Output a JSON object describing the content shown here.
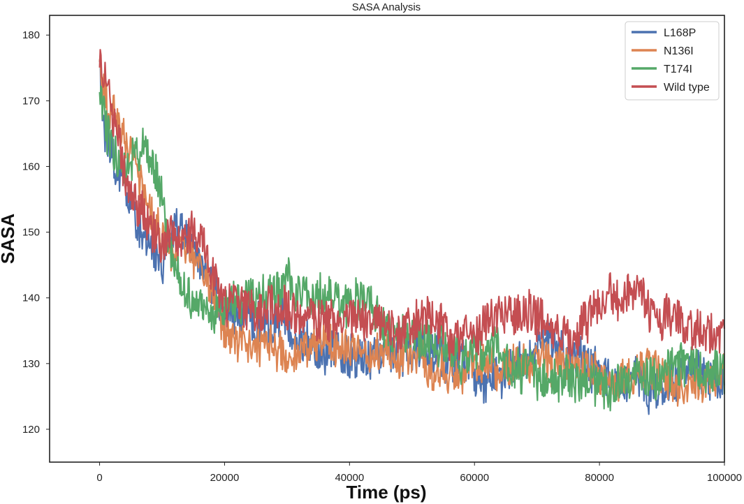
{
  "chart_data": {
    "type": "line",
    "title": "SASA Analysis",
    "xlabel": "Time (ps)",
    "ylabel": "SASA",
    "xlim": [
      -8000,
      100000
    ],
    "ylim": [
      115,
      183
    ],
    "xticks": [
      0,
      20000,
      40000,
      60000,
      80000,
      100000
    ],
    "yticks": [
      120,
      130,
      140,
      150,
      160,
      170,
      180
    ],
    "grid": false,
    "legend_position": "top-right",
    "series": [
      {
        "name": "L168P",
        "color": "#4C72B0",
        "x": [
          0,
          1000,
          2000,
          3000,
          4000,
          6000,
          8000,
          10000,
          12000,
          14000,
          16000,
          18000,
          20000,
          23000,
          26000,
          30000,
          34000,
          38000,
          42000,
          46000,
          50000,
          55000,
          60000,
          65000,
          70000,
          75000,
          80000,
          83000,
          85000,
          87000,
          88000,
          90000,
          93000,
          96000,
          100000
        ],
        "values": [
          175,
          164,
          161,
          158,
          156,
          151,
          148,
          145,
          152,
          149,
          146,
          141,
          138,
          136,
          137,
          135,
          134,
          134,
          133,
          132,
          131,
          130,
          130,
          129,
          130,
          131,
          130,
          128,
          127,
          127,
          124,
          127,
          128,
          128,
          127
        ],
        "noise": 3.2
      },
      {
        "name": "N136I",
        "color": "#DD8452",
        "x": [
          0,
          1000,
          2000,
          3000,
          4000,
          6000,
          8000,
          10000,
          12000,
          14000,
          16000,
          18000,
          20000,
          24000,
          28000,
          32000,
          36000,
          40000,
          44000,
          48000,
          52000,
          56000,
          60000,
          65000,
          70000,
          75000,
          80000,
          85000,
          90000,
          95000,
          100000
        ],
        "values": [
          176,
          170,
          168,
          166,
          164,
          158,
          153,
          150,
          147,
          148,
          147,
          142,
          135,
          133,
          134,
          133,
          133,
          132,
          132,
          131,
          130,
          129,
          129,
          130,
          130,
          130,
          129,
          129,
          128,
          128,
          128
        ],
        "noise": 3.0
      },
      {
        "name": "T174I",
        "color": "#55A868",
        "x": [
          0,
          1000,
          2000,
          3000,
          4000,
          6000,
          7500,
          9000,
          10000,
          11000,
          12000,
          14000,
          16000,
          18000,
          20000,
          24000,
          28000,
          32000,
          36000,
          40000,
          44000,
          48000,
          52000,
          56000,
          60000,
          65000,
          70000,
          75000,
          80000,
          85000,
          90000,
          95000,
          100000
        ],
        "values": [
          172,
          166,
          163,
          160,
          158,
          160,
          162,
          158,
          156,
          148,
          144,
          140,
          139,
          138,
          138,
          139,
          140,
          140,
          140,
          140,
          137,
          135,
          133,
          132,
          132,
          131,
          128,
          127,
          127,
          127,
          128,
          128,
          126
        ],
        "noise": 3.2
      },
      {
        "name": "Wild type",
        "color": "#C44E52",
        "x": [
          0,
          1000,
          2000,
          3000,
          4000,
          6000,
          8000,
          10000,
          12000,
          14000,
          16000,
          18000,
          20000,
          24000,
          28000,
          32000,
          36000,
          40000,
          44000,
          48000,
          52000,
          56000,
          60000,
          62000,
          65000,
          68000,
          70000,
          73000,
          76000,
          79000,
          82000,
          85000,
          87000,
          89000,
          92000,
          95000,
          98000,
          100000
        ],
        "values": [
          177,
          172,
          168,
          164,
          158,
          154,
          151,
          147,
          150,
          151,
          150,
          144,
          140,
          138,
          137,
          137,
          137,
          136,
          136,
          135,
          135,
          134,
          136,
          139,
          138,
          138,
          138,
          137,
          136,
          139,
          141,
          142,
          140,
          137,
          137,
          136,
          135,
          135
        ],
        "noise": 3.2
      }
    ]
  }
}
